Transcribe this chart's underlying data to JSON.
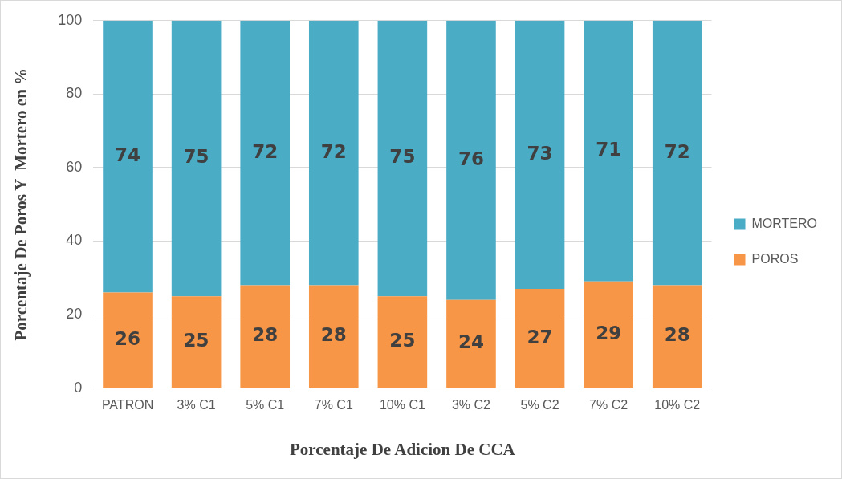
{
  "chart_data": {
    "type": "bar",
    "stacked": true,
    "xlabel": "Porcentaje De Adicion De CCA",
    "ylabel": "Porcentaje De Poros Y  Mortero en %",
    "categories": [
      "PATRON",
      "3% C1",
      "5% C1",
      "7% C1",
      "10% C1",
      "3% C2",
      "5% C2",
      "7% C2",
      "10% C2"
    ],
    "series": [
      {
        "name": "POROS",
        "color": "#f79646",
        "values": [
          26,
          25,
          28,
          28,
          25,
          24,
          27,
          29,
          28
        ]
      },
      {
        "name": "MORTERO",
        "color": "#4bacc6",
        "values": [
          74,
          75,
          72,
          72,
          75,
          76,
          73,
          71,
          72
        ]
      }
    ],
    "ylim": [
      0,
      100
    ],
    "yticks": [
      0,
      20,
      40,
      60,
      80,
      100
    ],
    "grid": "y",
    "legend": "right",
    "data_labels": true
  }
}
